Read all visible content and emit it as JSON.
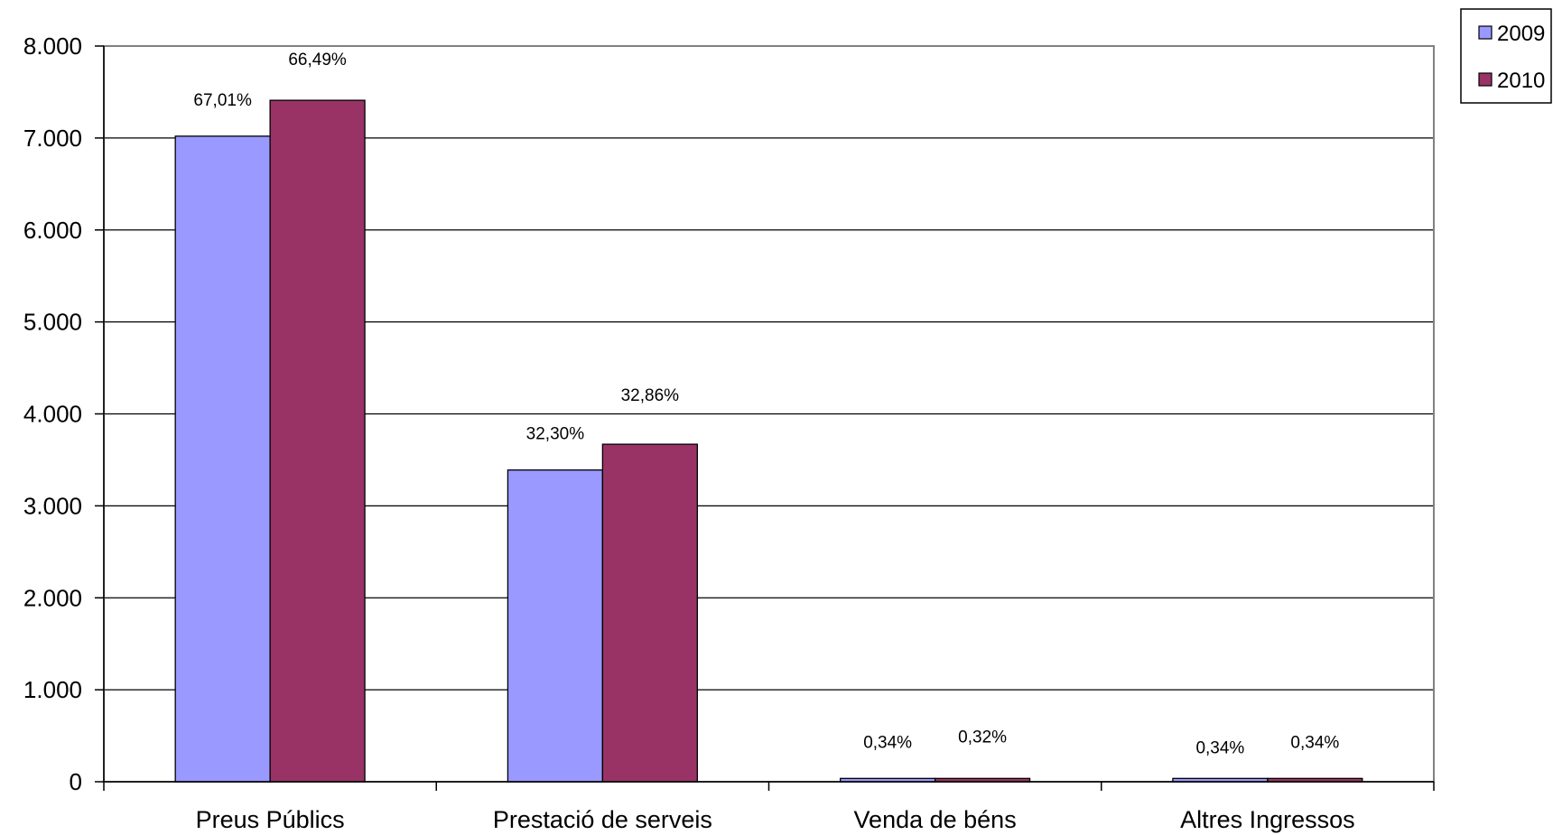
{
  "chart_data": {
    "type": "bar",
    "categories": [
      "Preus Públics",
      "Prestació de serveis",
      "Venda de béns",
      "Altres Ingressos"
    ],
    "series": [
      {
        "name": "2009",
        "color": "#9999ff",
        "values": [
          7020,
          3390,
          36,
          36
        ],
        "labels": [
          "67,01%",
          "32,30%",
          "0,34%",
          "0,34%"
        ]
      },
      {
        "name": "2010",
        "color": "#993366",
        "values": [
          7410,
          3670,
          36,
          36
        ],
        "labels": [
          "66,49%",
          "32,86%",
          "0,32%",
          "0,34%"
        ]
      }
    ],
    "y_ticks": [
      "0",
      "1.000",
      "2.000",
      "3.000",
      "4.000",
      "5.000",
      "6.000",
      "7.000",
      "8.000"
    ],
    "ylim": [
      0,
      8000
    ],
    "grid": true,
    "legend_position": "top-right",
    "title": "",
    "xlabel": "",
    "ylabel": ""
  }
}
